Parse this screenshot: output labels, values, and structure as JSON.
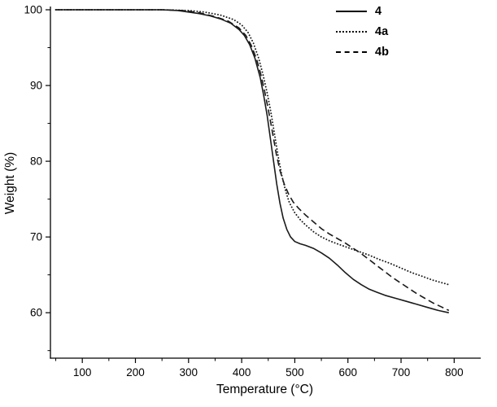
{
  "chart_data": {
    "type": "line",
    "title": "",
    "xlabel": "Temperature (°C)",
    "ylabel": "Weight (%)",
    "xlim": [
      40,
      850
    ],
    "ylim": [
      54,
      100
    ],
    "x_ticks": [
      100,
      200,
      300,
      400,
      500,
      600,
      700,
      800
    ],
    "x_minor_ticks": [
      50,
      150,
      250,
      350,
      450,
      550,
      650,
      750
    ],
    "y_ticks": [
      60,
      70,
      80,
      90,
      100
    ],
    "y_minor_ticks": [
      55,
      65,
      75,
      85,
      95
    ],
    "grid": false,
    "legend_position": "top-right",
    "axis_color": "#000000",
    "series": [
      {
        "name": "4",
        "line_style": "solid",
        "color": "#1a1a1a",
        "points": [
          [
            50,
            100
          ],
          [
            100,
            100
          ],
          [
            150,
            100
          ],
          [
            200,
            100
          ],
          [
            250,
            100
          ],
          [
            280,
            99.9
          ],
          [
            300,
            99.7
          ],
          [
            320,
            99.5
          ],
          [
            340,
            99.2
          ],
          [
            360,
            98.8
          ],
          [
            380,
            98.2
          ],
          [
            395,
            97.4
          ],
          [
            405,
            96.6
          ],
          [
            415,
            95.4
          ],
          [
            425,
            93.6
          ],
          [
            435,
            91.0
          ],
          [
            442,
            88.5
          ],
          [
            448,
            86.0
          ],
          [
            454,
            83.0
          ],
          [
            460,
            80.0
          ],
          [
            466,
            77.0
          ],
          [
            472,
            74.5
          ],
          [
            478,
            72.5
          ],
          [
            485,
            71.0
          ],
          [
            492,
            70.0
          ],
          [
            500,
            69.4
          ],
          [
            510,
            69.1
          ],
          [
            520,
            68.9
          ],
          [
            535,
            68.5
          ],
          [
            550,
            67.9
          ],
          [
            565,
            67.2
          ],
          [
            580,
            66.3
          ],
          [
            595,
            65.3
          ],
          [
            610,
            64.4
          ],
          [
            625,
            63.7
          ],
          [
            640,
            63.1
          ],
          [
            655,
            62.7
          ],
          [
            670,
            62.3
          ],
          [
            690,
            61.9
          ],
          [
            710,
            61.5
          ],
          [
            730,
            61.1
          ],
          [
            750,
            60.7
          ],
          [
            770,
            60.3
          ],
          [
            790,
            60.0
          ]
        ]
      },
      {
        "name": "4a",
        "line_style": "dotted",
        "color": "#1a1a1a",
        "points": [
          [
            50,
            100
          ],
          [
            150,
            100
          ],
          [
            250,
            100
          ],
          [
            300,
            99.9
          ],
          [
            330,
            99.7
          ],
          [
            360,
            99.3
          ],
          [
            385,
            98.7
          ],
          [
            400,
            98.0
          ],
          [
            412,
            97.0
          ],
          [
            422,
            95.6
          ],
          [
            432,
            93.6
          ],
          [
            440,
            91.5
          ],
          [
            448,
            89.0
          ],
          [
            455,
            86.5
          ],
          [
            462,
            83.5
          ],
          [
            469,
            80.5
          ],
          [
            476,
            78.0
          ],
          [
            483,
            76.0
          ],
          [
            490,
            74.5
          ],
          [
            500,
            73.2
          ],
          [
            510,
            72.3
          ],
          [
            520,
            71.6
          ],
          [
            535,
            70.7
          ],
          [
            550,
            70.0
          ],
          [
            565,
            69.5
          ],
          [
            580,
            69.1
          ],
          [
            600,
            68.6
          ],
          [
            620,
            68.1
          ],
          [
            640,
            67.6
          ],
          [
            660,
            67.0
          ],
          [
            680,
            66.5
          ],
          [
            700,
            65.9
          ],
          [
            720,
            65.3
          ],
          [
            740,
            64.8
          ],
          [
            760,
            64.3
          ],
          [
            775,
            64.0
          ],
          [
            790,
            63.7
          ]
        ]
      },
      {
        "name": "4b",
        "line_style": "dashed",
        "color": "#1a1a1a",
        "points": [
          [
            50,
            100
          ],
          [
            150,
            100
          ],
          [
            250,
            100
          ],
          [
            290,
            99.9
          ],
          [
            320,
            99.6
          ],
          [
            350,
            99.1
          ],
          [
            375,
            98.5
          ],
          [
            395,
            97.6
          ],
          [
            408,
            96.6
          ],
          [
            418,
            95.3
          ],
          [
            428,
            93.5
          ],
          [
            436,
            91.5
          ],
          [
            444,
            89.0
          ],
          [
            451,
            86.5
          ],
          [
            458,
            83.8
          ],
          [
            465,
            81.0
          ],
          [
            472,
            78.8
          ],
          [
            480,
            77.0
          ],
          [
            488,
            75.7
          ],
          [
            497,
            74.6
          ],
          [
            507,
            73.8
          ],
          [
            520,
            72.9
          ],
          [
            535,
            72.0
          ],
          [
            550,
            71.1
          ],
          [
            565,
            70.4
          ],
          [
            580,
            69.8
          ],
          [
            595,
            69.2
          ],
          [
            610,
            68.5
          ],
          [
            625,
            67.8
          ],
          [
            640,
            67.0
          ],
          [
            655,
            66.2
          ],
          [
            670,
            65.4
          ],
          [
            685,
            64.6
          ],
          [
            700,
            63.9
          ],
          [
            715,
            63.2
          ],
          [
            730,
            62.5
          ],
          [
            745,
            61.9
          ],
          [
            760,
            61.3
          ],
          [
            775,
            60.8
          ],
          [
            790,
            60.3
          ]
        ]
      }
    ]
  }
}
